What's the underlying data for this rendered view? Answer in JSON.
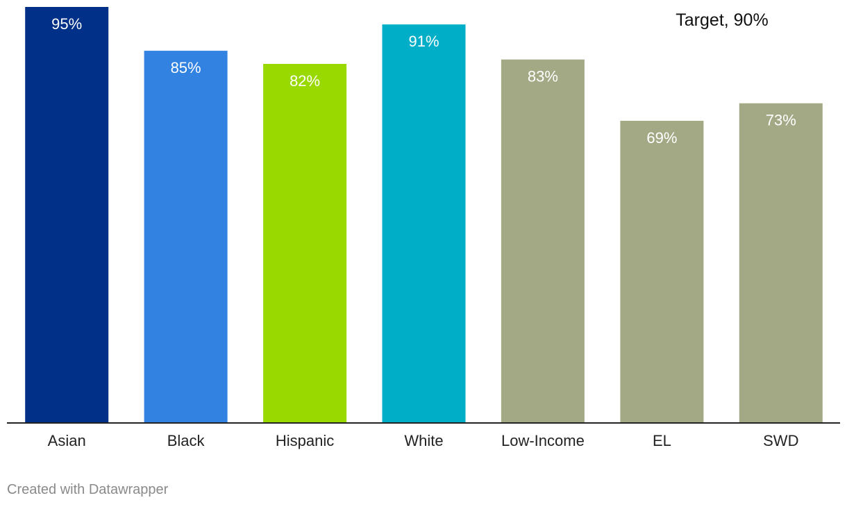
{
  "chart_data": {
    "type": "bar",
    "categories": [
      "Asian",
      "Black",
      "Hispanic",
      "White",
      "Low-Income",
      "EL",
      "SWD"
    ],
    "values": [
      95,
      85,
      82,
      91,
      83,
      69,
      73
    ],
    "value_labels": [
      "95%",
      "85%",
      "82%",
      "91%",
      "83%",
      "69%",
      "73%"
    ],
    "colors": [
      "#003087",
      "#3182e1",
      "#99d900",
      "#00aec8",
      "#a3a985",
      "#a3a985",
      "#a3a985"
    ],
    "ylim": [
      0,
      95
    ],
    "grid": false,
    "annotations": [
      {
        "text": "Target, 90%"
      }
    ]
  },
  "footer": {
    "credit": "Created with Datawrapper"
  }
}
